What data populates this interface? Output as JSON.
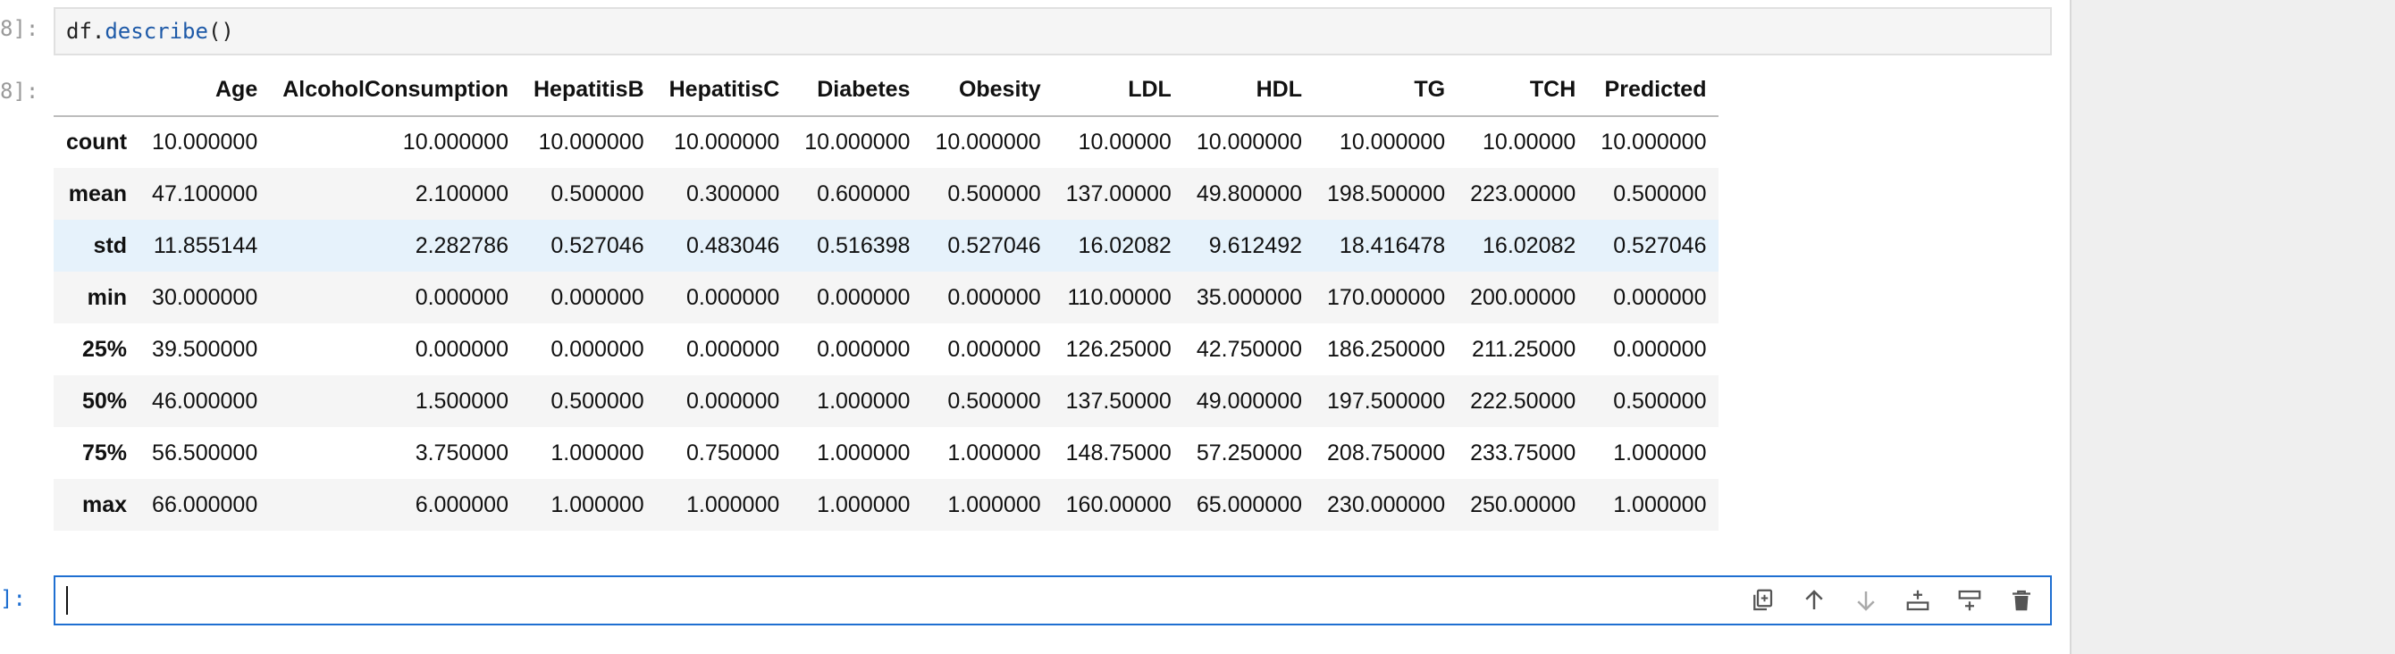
{
  "cells": {
    "describe_cell": {
      "prompt": "8]:",
      "code": {
        "variable": "df",
        "dot": ".",
        "method": "describe",
        "parens": "()"
      }
    },
    "output": {
      "prompt": "8]:",
      "columns": [
        "",
        "Age",
        "AlcoholConsumption",
        "HepatitisB",
        "HepatitisC",
        "Diabetes",
        "Obesity",
        "LDL",
        "HDL",
        "TG",
        "TCH",
        "Predicted"
      ],
      "rows": [
        {
          "label": "count",
          "values": [
            "10.000000",
            "10.000000",
            "10.000000",
            "10.000000",
            "10.000000",
            "10.000000",
            "10.00000",
            "10.000000",
            "10.000000",
            "10.00000",
            "10.000000"
          ]
        },
        {
          "label": "mean",
          "values": [
            "47.100000",
            "2.100000",
            "0.500000",
            "0.300000",
            "0.600000",
            "0.500000",
            "137.00000",
            "49.800000",
            "198.500000",
            "223.00000",
            "0.500000"
          ]
        },
        {
          "label": "std",
          "values": [
            "11.855144",
            "2.282786",
            "0.527046",
            "0.483046",
            "0.516398",
            "0.527046",
            "16.02082",
            "9.612492",
            "18.416478",
            "16.02082",
            "0.527046"
          ]
        },
        {
          "label": "min",
          "values": [
            "30.000000",
            "0.000000",
            "0.000000",
            "0.000000",
            "0.000000",
            "0.000000",
            "110.00000",
            "35.000000",
            "170.000000",
            "200.00000",
            "0.000000"
          ]
        },
        {
          "label": "25%",
          "values": [
            "39.500000",
            "0.000000",
            "0.000000",
            "0.000000",
            "0.000000",
            "0.000000",
            "126.25000",
            "42.750000",
            "186.250000",
            "211.25000",
            "0.000000"
          ]
        },
        {
          "label": "50%",
          "values": [
            "46.000000",
            "1.500000",
            "0.500000",
            "0.000000",
            "1.000000",
            "0.500000",
            "137.50000",
            "49.000000",
            "197.500000",
            "222.50000",
            "0.500000"
          ]
        },
        {
          "label": "75%",
          "values": [
            "56.500000",
            "3.750000",
            "1.000000",
            "0.750000",
            "1.000000",
            "1.000000",
            "148.75000",
            "57.250000",
            "208.750000",
            "233.75000",
            "1.000000"
          ]
        },
        {
          "label": "max",
          "values": [
            "66.000000",
            "6.000000",
            "1.000000",
            "1.000000",
            "1.000000",
            "1.000000",
            "160.00000",
            "65.000000",
            "230.000000",
            "250.00000",
            "1.000000"
          ]
        }
      ],
      "hovered_row": "std"
    },
    "empty_cell": {
      "prompt": "]:",
      "value": "",
      "toolbar_icons": [
        "duplicate-icon",
        "move-up-icon",
        "move-down-icon",
        "insert-above-icon",
        "insert-below-icon",
        "delete-icon"
      ]
    }
  },
  "colors": {
    "accent": "#1f6fd1",
    "method": "#1e5aa8",
    "hover_row": "#e6f2fb",
    "stripe": "#f5f5f5",
    "gutter": "#efefef"
  }
}
